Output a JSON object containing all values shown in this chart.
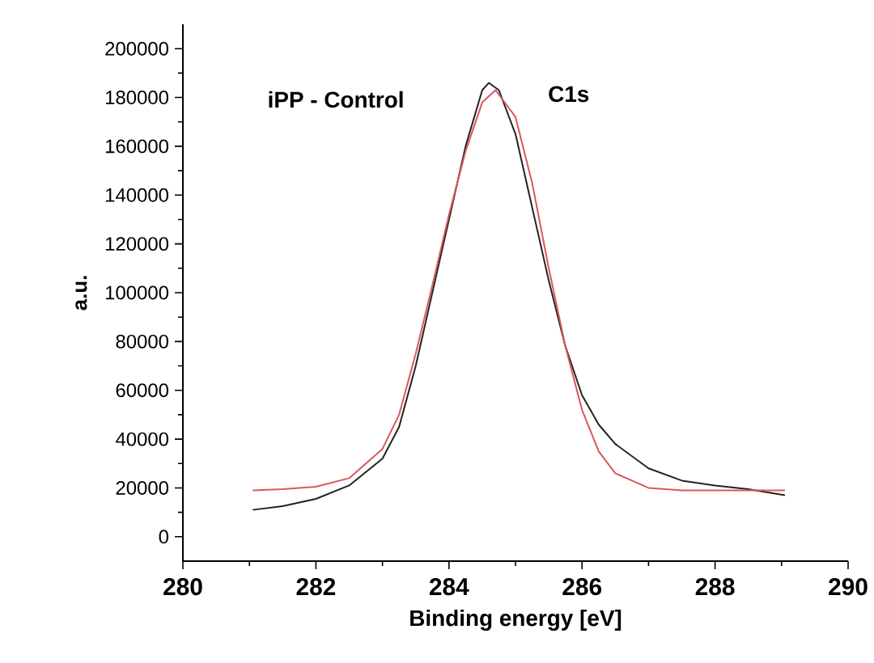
{
  "chart_data": {
    "type": "line",
    "xlabel": "Binding energy [eV]",
    "ylabel": "a.u.",
    "annotations": [
      "iPP - Control",
      "C1s"
    ],
    "xlim": [
      280,
      290
    ],
    "xticks": [
      280,
      282,
      284,
      286,
      288,
      290
    ],
    "ylim": [
      -10000,
      210000
    ],
    "yticks": [
      0,
      20000,
      40000,
      60000,
      80000,
      100000,
      120000,
      140000,
      160000,
      180000,
      200000
    ],
    "marker": "none",
    "line_style": "solid",
    "series": [
      {
        "color": "#222222",
        "x": [
          281.05,
          281.5,
          282,
          282.5,
          283,
          283.25,
          283.5,
          283.75,
          284,
          284.25,
          284.5,
          284.6,
          284.75,
          285,
          285.25,
          285.5,
          285.75,
          286,
          286.25,
          286.5,
          287,
          287.5,
          288,
          288.5,
          289.05
        ],
        "values": [
          11000,
          12500,
          15500,
          21000,
          32000,
          45000,
          70000,
          100000,
          130000,
          160000,
          183000,
          186000,
          183000,
          165000,
          135000,
          105000,
          78000,
          58000,
          46000,
          38000,
          28000,
          23000,
          21000,
          19500,
          17000
        ]
      },
      {
        "color": "#d9575b",
        "x": [
          281.05,
          281.5,
          282,
          282.5,
          283,
          283.25,
          283.5,
          283.75,
          284,
          284.25,
          284.5,
          284.7,
          285,
          285.25,
          285.5,
          285.75,
          286,
          286.25,
          286.5,
          287,
          287.5,
          288,
          289.05
        ],
        "values": [
          19000,
          19500,
          20500,
          24000,
          36000,
          50000,
          75000,
          103000,
          132000,
          158000,
          178000,
          183000,
          172000,
          145000,
          110000,
          78000,
          52000,
          35000,
          26000,
          20000,
          19000,
          19000,
          19000
        ]
      }
    ]
  }
}
